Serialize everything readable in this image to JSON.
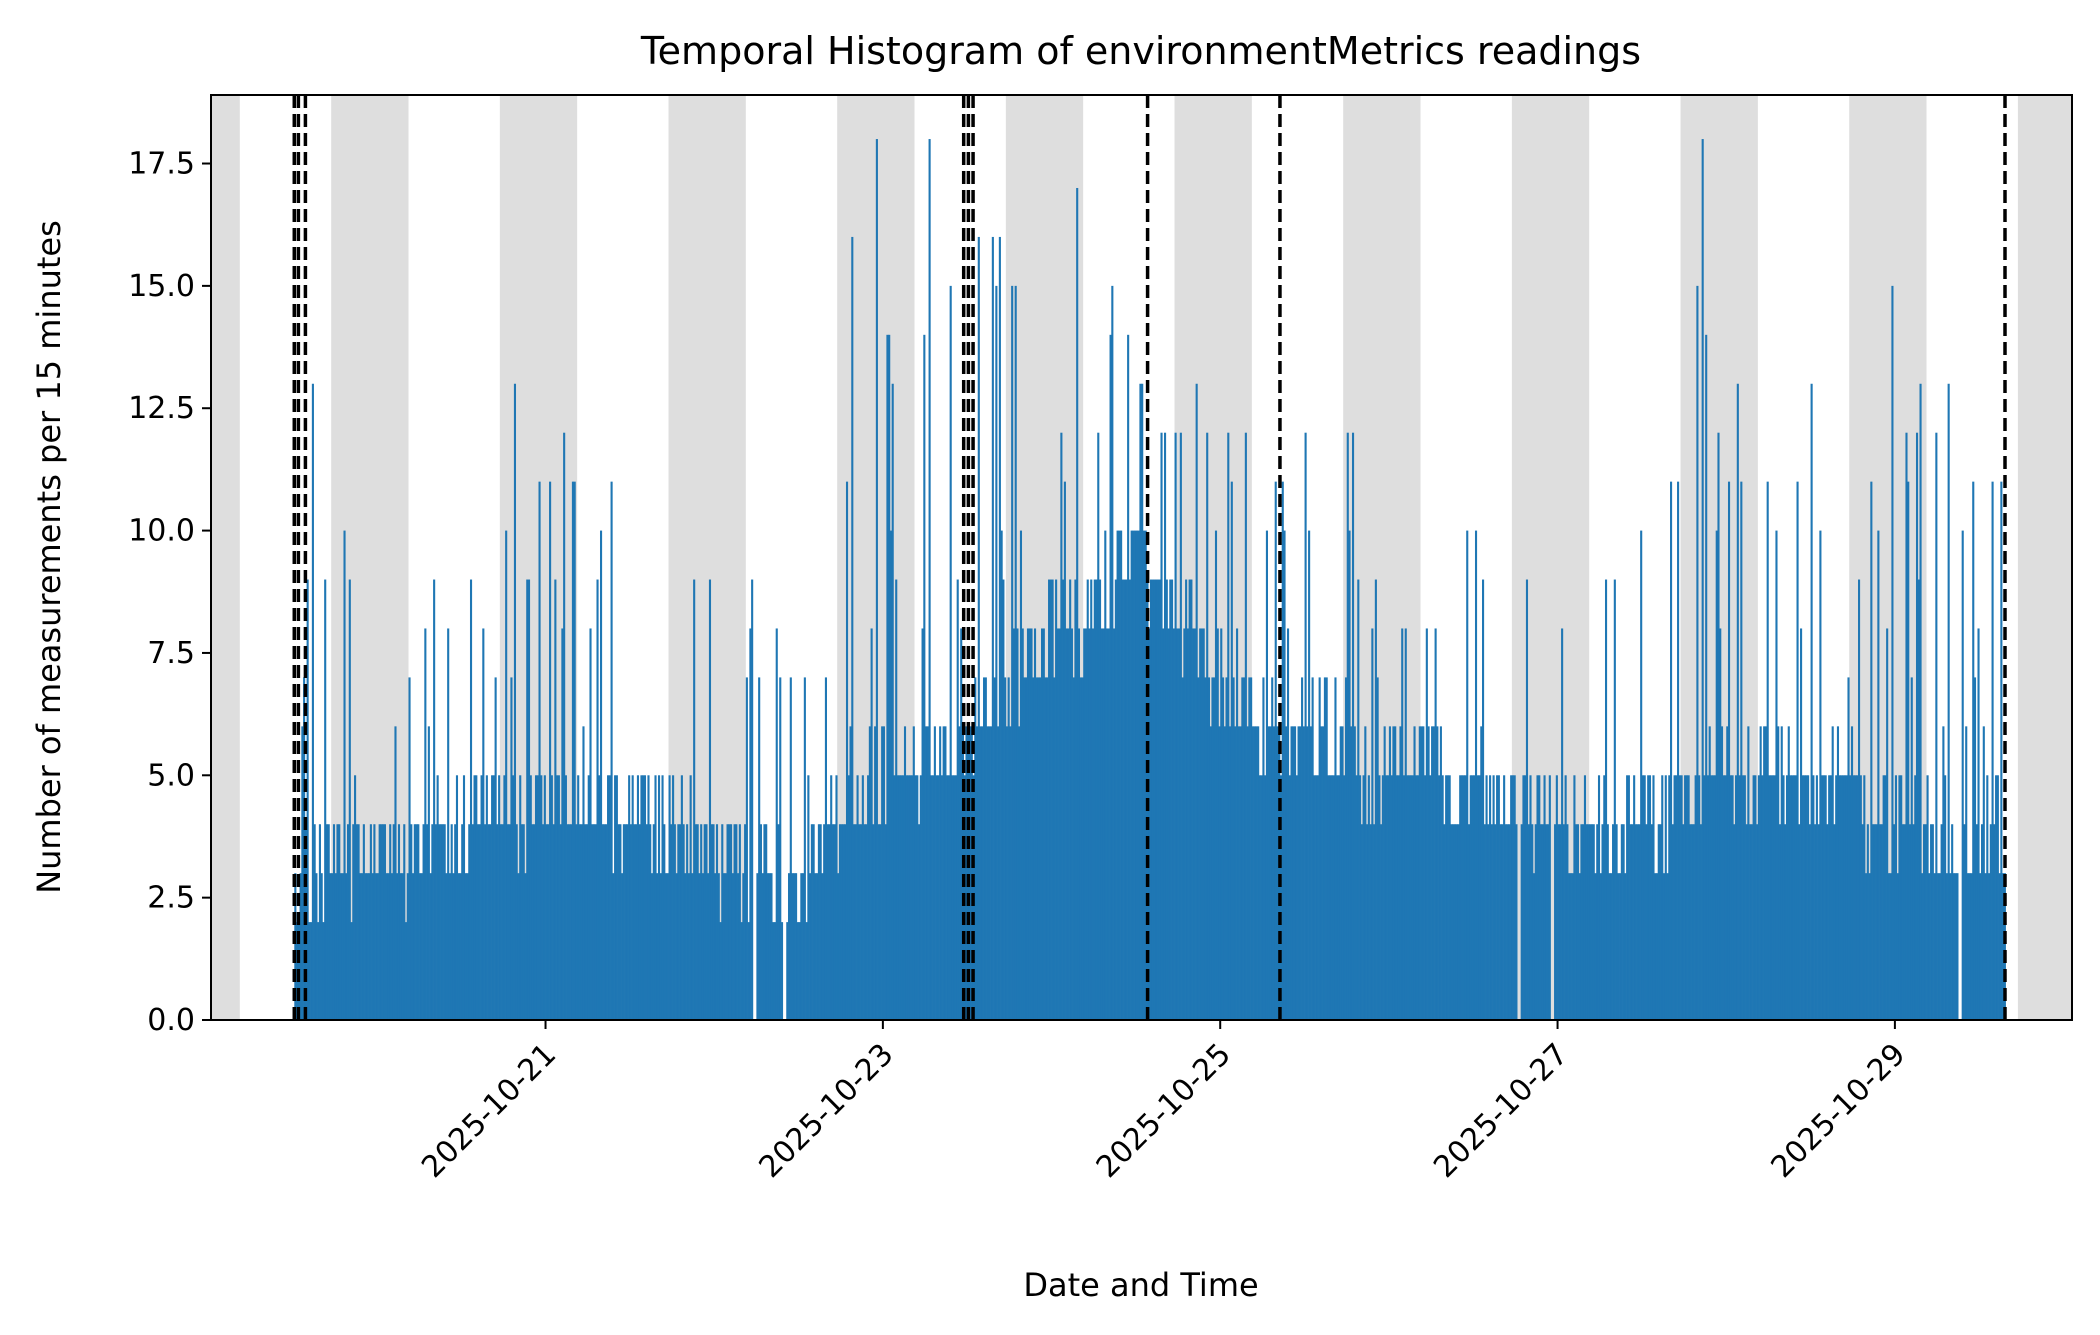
{
  "chart_data": {
    "type": "bar",
    "title": "Temporal Histogram of environmentMetrics readings",
    "xlabel": "Date and Time",
    "ylabel": "Number of measurements per 15 minutes",
    "bin_minutes": 15,
    "xlim": [
      "2025-10-19T00:24",
      "2025-10-30T01:12"
    ],
    "ylim": [
      0,
      18.9
    ],
    "x_ticks": [
      "2025-10-21",
      "2025-10-23",
      "2025-10-25",
      "2025-10-27",
      "2025-10-29"
    ],
    "y_ticks": [
      "0.0",
      "2.5",
      "5.0",
      "7.5",
      "10.0",
      "12.5",
      "15.0",
      "17.5"
    ],
    "bar_color": "#1f77b4",
    "night_shading_color": "#dedede",
    "night_periods": [
      [
        "2025-10-19T00:24",
        "2025-10-19T04:30"
      ],
      [
        "2025-10-19T17:30",
        "2025-10-20T04:30"
      ],
      [
        "2025-10-20T17:30",
        "2025-10-21T04:30"
      ],
      [
        "2025-10-21T17:30",
        "2025-10-22T04:30"
      ],
      [
        "2025-10-22T17:30",
        "2025-10-23T04:30"
      ],
      [
        "2025-10-23T17:30",
        "2025-10-24T04:30"
      ],
      [
        "2025-10-24T17:30",
        "2025-10-25T04:30"
      ],
      [
        "2025-10-25T17:30",
        "2025-10-26T04:30"
      ],
      [
        "2025-10-26T17:30",
        "2025-10-27T04:30"
      ],
      [
        "2025-10-27T17:30",
        "2025-10-28T04:30"
      ],
      [
        "2025-10-28T17:30",
        "2025-10-29T04:30"
      ],
      [
        "2025-10-29T17:30",
        "2025-10-30T01:12"
      ]
    ],
    "event_lines": [
      "2025-10-19T12:15",
      "2025-10-19T12:50",
      "2025-10-19T13:50",
      "2025-10-23T11:30",
      "2025-10-23T12:10",
      "2025-10-23T12:50",
      "2025-10-24T13:40",
      "2025-10-25T08:30",
      "2025-10-29T15:40"
    ],
    "data_start": "2025-10-19T12:15",
    "data_end": "2025-10-29T15:45",
    "gaps": [
      [
        "2025-10-22T05:30",
        "2025-10-22T06:00"
      ],
      [
        "2025-10-22T09:45",
        "2025-10-22T10:15"
      ],
      [
        "2025-10-26T18:15",
        "2025-10-26T18:45"
      ],
      [
        "2025-10-26T23:00",
        "2025-10-26T23:30"
      ],
      [
        "2025-10-29T09:00",
        "2025-10-29T09:30"
      ]
    ],
    "level_profile": {
      "dates": [
        "2025-10-19T12:15",
        "2025-10-19T18:00",
        "2025-10-20T06:00",
        "2025-10-20T18:00",
        "2025-10-21T06:00",
        "2025-10-21T18:00",
        "2025-10-22T06:00",
        "2025-10-22T12:00",
        "2025-10-22T18:00",
        "2025-10-23T06:00",
        "2025-10-23T12:00",
        "2025-10-23T18:00",
        "2025-10-24T06:00",
        "2025-10-24T12:00",
        "2025-10-24T18:00",
        "2025-10-25T06:00",
        "2025-10-25T18:00",
        "2025-10-26T06:00",
        "2025-10-26T18:00",
        "2025-10-27T06:00",
        "2025-10-27T18:00",
        "2025-10-28T06:00",
        "2025-10-28T18:00",
        "2025-10-29T06:00",
        "2025-10-29T15:45"
      ],
      "typical": [
        2.5,
        3.5,
        3.5,
        4.5,
        4.5,
        3.8,
        3.2,
        2.5,
        4.5,
        5.5,
        6,
        7,
        8.5,
        10,
        8,
        6,
        5.5,
        5,
        4.5,
        4,
        4.5,
        5,
        4.5,
        3.5,
        4
      ],
      "peak": [
        8,
        11,
        9,
        11,
        12,
        11,
        9,
        7,
        13,
        15,
        17.5,
        16,
        14.5,
        17,
        14,
        12,
        12,
        10,
        10,
        9,
        16,
        12,
        11,
        14,
        12
      ]
    },
    "notable_peaks": [
      {
        "x": "2025-10-22T19:30",
        "y": 16
      },
      {
        "x": "2025-10-22T23:00",
        "y": 18
      },
      {
        "x": "2025-10-23T06:30",
        "y": 18
      },
      {
        "x": "2025-10-23T13:30",
        "y": 16
      },
      {
        "x": "2025-10-24T03:30",
        "y": 17
      },
      {
        "x": "2025-10-24T08:30",
        "y": 15
      },
      {
        "x": "2025-10-27T20:30",
        "y": 18
      },
      {
        "x": "2025-10-27T21:00",
        "y": 14
      },
      {
        "x": "2025-10-28T23:30",
        "y": 15
      },
      {
        "x": "2025-10-28T12:00",
        "y": 13
      },
      {
        "x": "2025-10-19T14:40",
        "y": 13
      },
      {
        "x": "2025-10-20T19:30",
        "y": 13
      }
    ]
  }
}
